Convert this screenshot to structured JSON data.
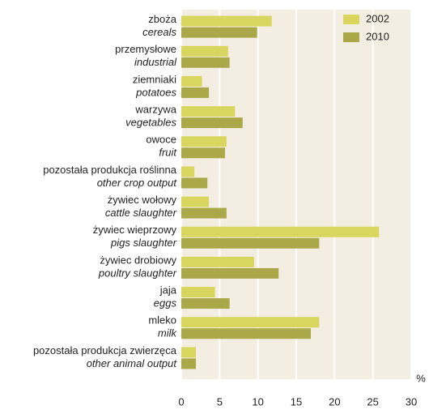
{
  "chart_data": {
    "type": "bar",
    "orientation": "horizontal",
    "categories": [
      "zboża",
      "przemysłowe",
      "ziemniaki",
      "warzywa",
      "owoce",
      "pozostała produkcja roślinna",
      "żywiec wołowy",
      "żywiec wieprzowy",
      "żywiec drobiowy",
      "jaja",
      "mleko",
      "pozostała produkcja zwierzęca"
    ],
    "categories_en": [
      "cereals",
      "industrial",
      "potatoes",
      "vegetables",
      "fruit",
      "other crop output",
      "cattle slaughter",
      "pigs slaughter",
      "poultry slaughter",
      "eggs",
      "milk",
      "other animal output"
    ],
    "series": [
      {
        "name": "2002",
        "color": "#d8d65e",
        "values": [
          11.8,
          6.1,
          2.7,
          7.0,
          5.9,
          1.7,
          3.6,
          25.8,
          9.5,
          4.4,
          18.0,
          1.9
        ]
      },
      {
        "name": "2010",
        "color": "#aba84a",
        "values": [
          9.9,
          6.3,
          3.6,
          8.0,
          5.7,
          3.4,
          5.9,
          18.0,
          12.7,
          6.3,
          16.9,
          1.9
        ]
      }
    ],
    "x_label": "%",
    "xlim": [
      0,
      30
    ],
    "xticks": [
      0,
      5,
      10,
      15,
      20,
      25,
      30
    ],
    "grid": true,
    "legend": "upper right"
  }
}
